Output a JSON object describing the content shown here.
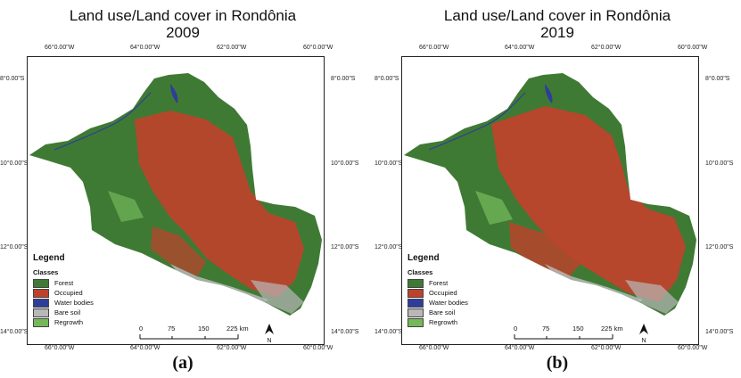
{
  "colors": {
    "forest": "#3f7a34",
    "occupied": "#c0412b",
    "water": "#2f3d9a",
    "bare_soil": "#b8b8b8",
    "regrowth": "#74b85a"
  },
  "panels": [
    {
      "title": "Land use/Land cover in Rondônia",
      "year": "2009",
      "caption": "(a)",
      "occupied_level": "medium"
    },
    {
      "title": "Land use/Land cover in Rondônia",
      "year": "2019",
      "caption": "(b)",
      "occupied_level": "high"
    }
  ],
  "lon_labels": [
    "66°0.00\"W",
    "64°0.00\"W",
    "62°0.00\"W",
    "60°0.00\"W"
  ],
  "lat_labels": [
    "8°0.00\"S",
    "10°0.00\"S",
    "12°0.00\"S",
    "14°0.00\"S"
  ],
  "legend": {
    "title": "Legend",
    "subtitle": "Classes",
    "items": [
      "Forest",
      "Occupied",
      "Water bodies",
      "Bare soil",
      "Regrowth"
    ]
  },
  "scale": {
    "labels": [
      "0",
      "75",
      "150",
      "225 km"
    ]
  },
  "north_label": "N"
}
